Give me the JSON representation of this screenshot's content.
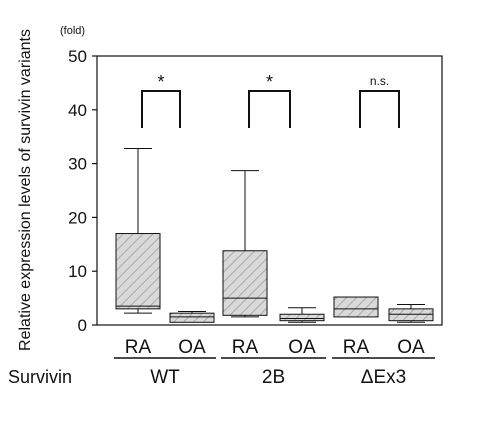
{
  "chart_data": {
    "type": "boxplot",
    "unit_label": "(fold)",
    "ylabel": "Relative expression levels of survivin variants",
    "ylim": [
      0,
      50
    ],
    "yticks": [
      0,
      10,
      20,
      30,
      40,
      50
    ],
    "category_axis_label": "Survivin",
    "groups": [
      {
        "label": "WT",
        "significance": "*",
        "conditions": [
          {
            "label": "RA",
            "whisker_low": 2.2,
            "q1": 3.0,
            "median": 3.5,
            "q3": 17.0,
            "whisker_high": 32.8
          },
          {
            "label": "OA",
            "whisker_low": 0.5,
            "q1": 0.5,
            "median": 1.5,
            "q3": 2.2,
            "whisker_high": 2.5
          }
        ]
      },
      {
        "label": "2B",
        "significance": "*",
        "conditions": [
          {
            "label": "RA",
            "whisker_low": 1.5,
            "q1": 1.8,
            "median": 5.0,
            "q3": 13.8,
            "whisker_high": 28.7
          },
          {
            "label": "OA",
            "whisker_low": 0.5,
            "q1": 0.8,
            "median": 1.2,
            "q3": 2.0,
            "whisker_high": 3.2
          }
        ]
      },
      {
        "label": "ΔEx3",
        "significance": "n.s.",
        "conditions": [
          {
            "label": "RA",
            "whisker_low": 1.5,
            "q1": 1.5,
            "median": 3.0,
            "q3": 5.2,
            "whisker_high": 5.2
          },
          {
            "label": "OA",
            "whisker_low": 0.5,
            "q1": 0.8,
            "median": 2.0,
            "q3": 3.0,
            "whisker_high": 3.8
          }
        ]
      }
    ]
  }
}
